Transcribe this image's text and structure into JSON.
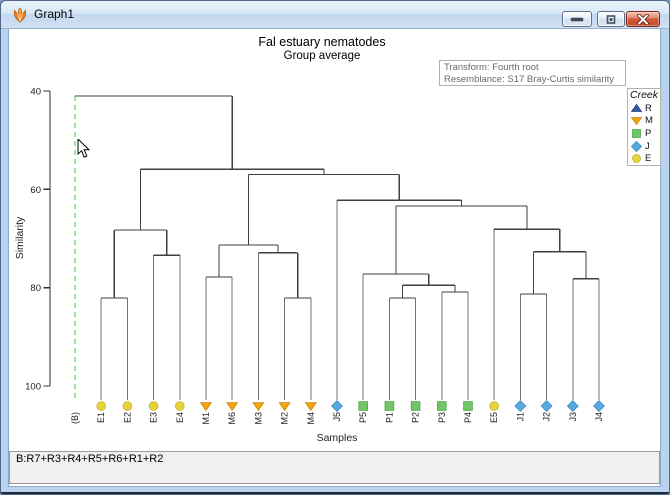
{
  "window": {
    "title": "Graph1",
    "minimize_label": "minimize",
    "restore_label": "restore",
    "close_label": "close"
  },
  "chart": {
    "title": "Fal estuary nematodes",
    "subtitle": "Group average",
    "info_line1": "Transform: Fourth root",
    "info_line2": "Resemblance: S17 Bray-Curtis similarity"
  },
  "status_bar": {
    "text": "B:R7+R3+R4+R5+R6+R1+R2"
  },
  "chart_data": {
    "type": "dendrogram",
    "title": "Fal estuary nematodes",
    "subtitle": "Group average",
    "ylabel": "Similarity",
    "xlabel": "Samples",
    "ylim": [
      40,
      100
    ],
    "yticks": [
      40,
      60,
      80,
      100
    ],
    "y_axis_inverted_note": "40 at top, 100 at bottom",
    "collapsed_branch_color": "#2fd32f",
    "legend": {
      "title": "Creek",
      "items": [
        {
          "label": "R",
          "group": "R"
        },
        {
          "label": "M",
          "group": "M"
        },
        {
          "label": "P",
          "group": "P"
        },
        {
          "label": "J",
          "group": "J"
        },
        {
          "label": "E",
          "group": "E"
        }
      ]
    },
    "groups": {
      "R": {
        "symbol": "triangle-up",
        "color": "#2e5fa3",
        "edge": "#1d457f"
      },
      "M": {
        "symbol": "triangle-down",
        "color": "#f2a50c",
        "edge": "#c8860a"
      },
      "P": {
        "symbol": "square",
        "color": "#72c566",
        "edge": "#4fa84a"
      },
      "J": {
        "symbol": "diamond",
        "color": "#58aadc",
        "edge": "#3a8cc2"
      },
      "E": {
        "symbol": "circle",
        "color": "#e8d23a",
        "edge": "#c4b22a"
      }
    },
    "leaves": [
      {
        "label": "(B)",
        "group": "B",
        "collapsed": true
      },
      {
        "label": "E1",
        "group": "E"
      },
      {
        "label": "E2",
        "group": "E"
      },
      {
        "label": "E3",
        "group": "E"
      },
      {
        "label": "E4",
        "group": "E"
      },
      {
        "label": "M1",
        "group": "M"
      },
      {
        "label": "M6",
        "group": "M"
      },
      {
        "label": "M3",
        "group": "M"
      },
      {
        "label": "M2",
        "group": "M"
      },
      {
        "label": "M4",
        "group": "M"
      },
      {
        "label": "J5",
        "group": "J"
      },
      {
        "label": "P5",
        "group": "P"
      },
      {
        "label": "P1",
        "group": "P"
      },
      {
        "label": "P2",
        "group": "P"
      },
      {
        "label": "P3",
        "group": "P"
      },
      {
        "label": "P4",
        "group": "P"
      },
      {
        "label": "E5",
        "group": "E"
      },
      {
        "label": "J1",
        "group": "J"
      },
      {
        "label": "J2",
        "group": "J"
      },
      {
        "label": "J3",
        "group": "J"
      },
      {
        "label": "J4",
        "group": "J"
      }
    ],
    "tree": {
      "sim": 41.0,
      "children": [
        {
          "leaf": "(B)"
        },
        {
          "sim": 55.9,
          "children": [
            {
              "sim": 68.3,
              "children": [
                {
                  "sim": 82.1,
                  "children": [
                    {
                      "leaf": "E1"
                    },
                    {
                      "leaf": "E2"
                    }
                  ]
                },
                {
                  "sim": 73.4,
                  "children": [
                    {
                      "leaf": "E3"
                    },
                    {
                      "leaf": "E4"
                    }
                  ]
                }
              ]
            },
            {
              "sim": 57.0,
              "children": [
                {
                  "sim": 71.3,
                  "children": [
                    {
                      "sim": 77.8,
                      "children": [
                        {
                          "leaf": "M1"
                        },
                        {
                          "leaf": "M6"
                        }
                      ]
                    },
                    {
                      "sim": 72.9,
                      "children": [
                        {
                          "leaf": "M3"
                        },
                        {
                          "sim": 82.1,
                          "children": [
                            {
                              "leaf": "M2"
                            },
                            {
                              "leaf": "M4"
                            }
                          ]
                        }
                      ]
                    }
                  ]
                },
                {
                  "sim": 62.2,
                  "children": [
                    {
                      "leaf": "J5"
                    },
                    {
                      "sim": 63.4,
                      "children": [
                        {
                          "sim": 77.2,
                          "children": [
                            {
                              "leaf": "P5"
                            },
                            {
                              "sim": 79.5,
                              "children": [
                                {
                                  "sim": 82.1,
                                  "children": [
                                    {
                                      "leaf": "P1"
                                    },
                                    {
                                      "leaf": "P2"
                                    }
                                  ]
                                },
                                {
                                  "sim": 80.9,
                                  "children": [
                                    {
                                      "leaf": "P3"
                                    },
                                    {
                                      "leaf": "P4"
                                    }
                                  ]
                                }
                              ]
                            }
                          ]
                        },
                        {
                          "sim": 68.1,
                          "children": [
                            {
                              "leaf": "E5"
                            },
                            {
                              "sim": 72.7,
                              "children": [
                                {
                                  "sim": 81.3,
                                  "children": [
                                    {
                                      "leaf": "J1"
                                    },
                                    {
                                      "leaf": "J2"
                                    }
                                  ]
                                },
                                {
                                  "sim": 78.2,
                                  "children": [
                                    {
                                      "leaf": "J3"
                                    },
                                    {
                                      "leaf": "J4"
                                    }
                                  ]
                                }
                              ]
                            }
                          ]
                        }
                      ]
                    }
                  ]
                }
              ]
            }
          ]
        }
      ]
    }
  }
}
